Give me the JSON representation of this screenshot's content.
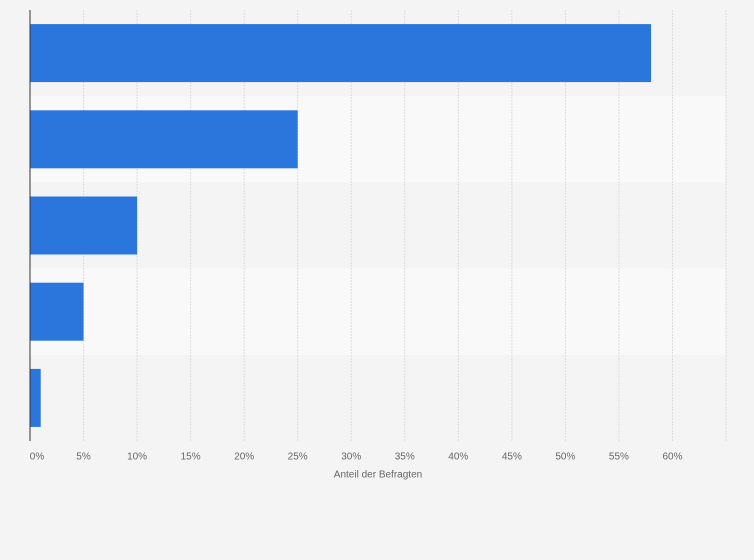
{
  "chart_data": {
    "type": "bar",
    "orientation": "horizontal",
    "categories": [
      null,
      null,
      null,
      null,
      null
    ],
    "values": [
      58,
      25,
      10,
      5,
      1
    ],
    "color": "#2a76dd",
    "xlabel": "Anteil der Befragten",
    "xlim": [
      0,
      65
    ],
    "xticks": [
      {
        "value": 0,
        "label": "0%"
      },
      {
        "value": 5,
        "label": "5%"
      },
      {
        "value": 10,
        "label": "10%"
      },
      {
        "value": 15,
        "label": "15%"
      },
      {
        "value": 20,
        "label": "20%"
      },
      {
        "value": 25,
        "label": "25%"
      },
      {
        "value": 30,
        "label": "30%"
      },
      {
        "value": 35,
        "label": "35%"
      },
      {
        "value": 40,
        "label": "40%"
      },
      {
        "value": 45,
        "label": "45%"
      },
      {
        "value": 50,
        "label": "50%"
      },
      {
        "value": 55,
        "label": "55%"
      },
      {
        "value": 60,
        "label": "60%"
      }
    ],
    "grid": true
  }
}
